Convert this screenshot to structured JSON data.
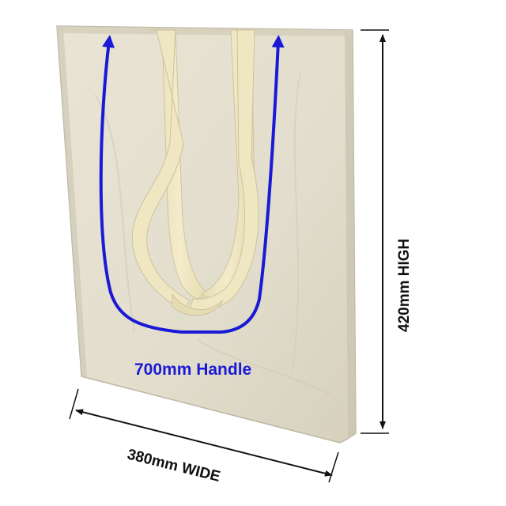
{
  "image": {
    "subject": "canvas tote bag with long shoulder handles",
    "background_color": "#ffffff"
  },
  "colors": {
    "bag_fabric": "#e4dfcf",
    "bag_shadow": "#c9c3b0",
    "handle_fabric": "#f0e7c4",
    "handle_shadow": "#d9cfa8",
    "annotation_blue": "#1a1ad6",
    "dimension_line": "#111111"
  },
  "annotations": {
    "handle_label": "700mm Handle",
    "width_label": "380mm WIDE",
    "height_label": "420mm HIGH"
  }
}
